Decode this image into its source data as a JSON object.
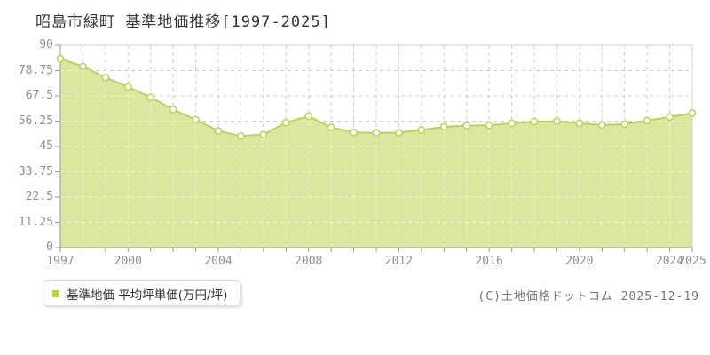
{
  "header": {
    "title": "昭島市緑町 基準地価推移[1997-2025]"
  },
  "legend": {
    "label": "基準地価 平均坪単価(万円/坪)",
    "marker_color": "#b5d832"
  },
  "footer": {
    "copyright": "(C)土地価格ドットコム 2025-12-19"
  },
  "chart_data": {
    "type": "area",
    "title": "昭島市緑町 基準地価推移[1997-2025]",
    "x": [
      1997,
      1998,
      1999,
      2000,
      2001,
      2002,
      2003,
      2004,
      2005,
      2006,
      2007,
      2008,
      2009,
      2010,
      2011,
      2012,
      2013,
      2014,
      2015,
      2016,
      2017,
      2018,
      2019,
      2020,
      2021,
      2022,
      2023,
      2024,
      2025
    ],
    "series": [
      {
        "name": "基準地価 平均坪単価(万円/坪)",
        "values": [
          84.0,
          80.6,
          75.7,
          71.5,
          66.9,
          61.4,
          56.9,
          51.9,
          49.6,
          50.3,
          55.6,
          58.5,
          53.5,
          51.2,
          51.0,
          51.1,
          52.3,
          53.7,
          54.2,
          54.4,
          55.3,
          56.0,
          56.2,
          55.3,
          54.5,
          54.9,
          56.5,
          58.1,
          59.8
        ]
      }
    ],
    "ylabel": "",
    "xlabel": "",
    "ylim": [
      0,
      90
    ],
    "ytick_labels": [
      "0",
      "11.25",
      "22.5",
      "33.75",
      "45",
      "56.25",
      "67.5",
      "78.75",
      "90"
    ],
    "ytick_values": [
      0,
      11.25,
      22.5,
      33.75,
      45,
      56.25,
      67.5,
      78.75,
      90
    ],
    "xtick_labeled_years": [
      1997,
      2000,
      2004,
      2008,
      2012,
      2016,
      2020,
      2024,
      2025
    ],
    "grid": true,
    "legend_position": "bottom-left",
    "colors": {
      "area_fill": "#dbe79e",
      "line": "#b8d458",
      "marker_fill": "#ffffff",
      "marker_stroke": "#bdd45a",
      "grid_line": "#cccccc",
      "grid_line_over_area": "rgba(255,255,255,0.55)",
      "axis_line": "#9a9a9a",
      "plot_border": "#d2d2d2",
      "tick_label": "#8f8f8f",
      "title_text": "#333333"
    }
  }
}
